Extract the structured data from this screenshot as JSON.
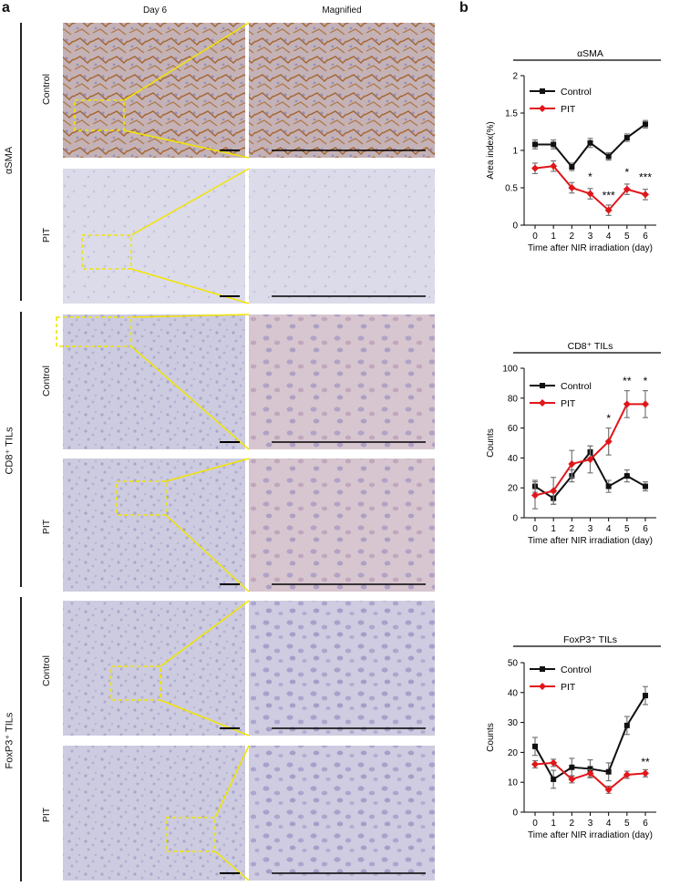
{
  "panel_a": {
    "letter": "a",
    "columns": [
      "Day 6",
      "Magnified"
    ],
    "groups": [
      {
        "label": "αSMA",
        "rows": [
          "Control",
          "PIT"
        ]
      },
      {
        "label": "CD8⁺ TILs",
        "rows": [
          "Control",
          "PIT"
        ]
      },
      {
        "label": "FoxP3⁺ TILs",
        "rows": [
          "Control",
          "PIT"
        ]
      }
    ],
    "colors": {
      "box": "#f2e400",
      "tissue_light": "#d9d9ea",
      "tissue_mid": "#b9b7d4",
      "stain_brown": "#a5642f"
    }
  },
  "panel_b": {
    "letter": "b",
    "colors": {
      "control": "#111111",
      "pit": "#e0161b",
      "errorbar": "#777777"
    }
  },
  "chart_data": [
    {
      "type": "line",
      "title": "αSMA",
      "xlabel": "Time after NIR irradiation (day)",
      "ylabel": "Area index(%)",
      "x": [
        0,
        1,
        2,
        3,
        4,
        5,
        6
      ],
      "xlim": [
        0,
        6
      ],
      "ylim": [
        0,
        2
      ],
      "yticks": [
        "0",
        "0.5",
        "1",
        "1.5",
        "2"
      ],
      "yticks_values": [
        0,
        0.5,
        1,
        1.5,
        2
      ],
      "legend": "top-left",
      "series": [
        {
          "name": "Control",
          "values": [
            1.08,
            1.08,
            0.78,
            1.1,
            0.92,
            1.17,
            1.35
          ],
          "errors": [
            0.06,
            0.06,
            0.05,
            0.06,
            0.05,
            0.05,
            0.05
          ]
        },
        {
          "name": "PIT",
          "values": [
            0.76,
            0.79,
            0.5,
            0.42,
            0.2,
            0.48,
            0.41
          ],
          "errors": [
            0.07,
            0.07,
            0.07,
            0.07,
            0.07,
            0.07,
            0.07
          ]
        }
      ],
      "annotations": [
        {
          "x": 3,
          "y": 0.6,
          "text": "*"
        },
        {
          "x": 4,
          "y": 0.35,
          "text": "***"
        },
        {
          "x": 5,
          "y": 0.66,
          "text": "*"
        },
        {
          "x": 6,
          "y": 0.59,
          "text": "***"
        }
      ]
    },
    {
      "type": "line",
      "title": "CD8⁺ TILs",
      "xlabel": "Time after NIR irradiation (day)",
      "ylabel": "Counts",
      "x": [
        0,
        1,
        2,
        3,
        4,
        5,
        6
      ],
      "xlim": [
        0,
        6
      ],
      "ylim": [
        0,
        100
      ],
      "yticks": [
        "0",
        "20",
        "40",
        "60",
        "80",
        "100"
      ],
      "yticks_values": [
        0,
        20,
        40,
        60,
        80,
        100
      ],
      "legend": "top-left",
      "series": [
        {
          "name": "Control",
          "values": [
            21,
            13,
            28,
            44,
            21,
            28,
            21
          ],
          "errors": [
            4,
            4,
            4,
            4,
            4,
            4,
            3
          ]
        },
        {
          "name": "PIT",
          "values": [
            15,
            18,
            36,
            39,
            51,
            76,
            76
          ],
          "errors": [
            9,
            9,
            9,
            9,
            9,
            9,
            9
          ]
        }
      ],
      "annotations": [
        {
          "x": 4,
          "y": 64,
          "text": "*"
        },
        {
          "x": 5,
          "y": 89,
          "text": "**"
        },
        {
          "x": 6,
          "y": 89,
          "text": "*"
        }
      ]
    },
    {
      "type": "line",
      "title": "FoxP3⁺ TILs",
      "xlabel": "Time after NIR irradiation (day)",
      "ylabel": "Counts",
      "x": [
        0,
        1,
        2,
        3,
        4,
        5,
        6
      ],
      "xlim": [
        0,
        6
      ],
      "ylim": [
        0,
        50
      ],
      "yticks": [
        "0",
        "10",
        "20",
        "30",
        "40",
        "50"
      ],
      "yticks_values": [
        0,
        10,
        20,
        30,
        40,
        50
      ],
      "legend": "top-left",
      "series": [
        {
          "name": "Control",
          "values": [
            22,
            11,
            15,
            14.5,
            13.5,
            29,
            39
          ],
          "errors": [
            3,
            3,
            3,
            3,
            3,
            3,
            3
          ]
        },
        {
          "name": "PIT",
          "values": [
            16,
            16.5,
            11,
            13,
            7.5,
            12.5,
            13
          ],
          "errors": [
            1.2,
            1.2,
            1.2,
            1.2,
            1.2,
            1.2,
            1.2
          ]
        }
      ],
      "annotations": [
        {
          "x": 6,
          "y": 15.5,
          "text": "**"
        }
      ]
    }
  ]
}
